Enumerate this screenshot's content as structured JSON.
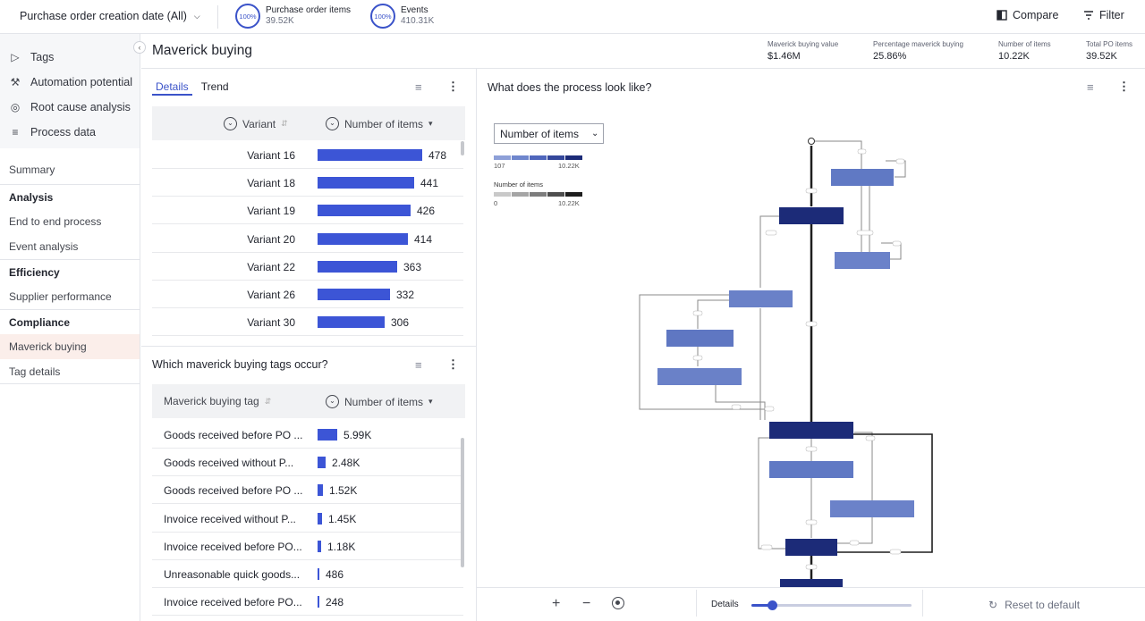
{
  "topbar": {
    "date_filter": "Purchase order creation date (All)",
    "gauges": [
      {
        "pct": "100%",
        "label": "Purchase order items",
        "value": "39.52K"
      },
      {
        "pct": "100%",
        "label": "Events",
        "value": "410.31K"
      }
    ],
    "compare": "Compare",
    "filter": "Filter"
  },
  "sidebar": {
    "top_items": [
      {
        "icon": "tag-icon",
        "label": "Tags"
      },
      {
        "icon": "robot-arm-icon",
        "label": "Automation potential"
      },
      {
        "icon": "target-icon",
        "label": "Root cause analysis"
      },
      {
        "icon": "list-icon",
        "label": "Process data"
      }
    ],
    "summary": "Summary",
    "sections": [
      {
        "head": "Analysis",
        "links": [
          "End to end process",
          "Event analysis"
        ]
      },
      {
        "head": "Efficiency",
        "links": [
          "Supplier performance"
        ]
      },
      {
        "head": "Compliance",
        "links": [
          "Maverick buying",
          "Tag details"
        ]
      }
    ]
  },
  "page": {
    "title": "Maverick buying",
    "kpis": [
      {
        "label": "Maverick buying value",
        "value": "$1.46M"
      },
      {
        "label": "Percentage maverick buying",
        "value": "25.86%"
      },
      {
        "label": "Number of items",
        "value": "10.22K"
      },
      {
        "label": "Total PO items",
        "value": "39.52K"
      }
    ]
  },
  "variants": {
    "tabs": [
      "Details",
      "Trend"
    ],
    "col1": "Variant",
    "col2": "Number of items",
    "max": 478,
    "rows": [
      {
        "label": "Variant 16",
        "value": 478
      },
      {
        "label": "Variant 18",
        "value": 441
      },
      {
        "label": "Variant 19",
        "value": 426
      },
      {
        "label": "Variant 20",
        "value": 414
      },
      {
        "label": "Variant 22",
        "value": 363
      },
      {
        "label": "Variant 26",
        "value": 332
      },
      {
        "label": "Variant 30",
        "value": 306
      }
    ]
  },
  "tags": {
    "title": "Which maverick buying tags occur?",
    "col1": "Maverick buying tag",
    "col2": "Number of items",
    "max": 5990,
    "rows": [
      {
        "label": "Goods received before PO ...",
        "value": 5990,
        "display": "5.99K"
      },
      {
        "label": "Goods received without P...",
        "value": 2480,
        "display": "2.48K"
      },
      {
        "label": "Goods received before PO ...",
        "value": 1520,
        "display": "1.52K"
      },
      {
        "label": "Invoice received without P...",
        "value": 1450,
        "display": "1.45K"
      },
      {
        "label": "Invoice received before PO...",
        "value": 1180,
        "display": "1.18K"
      },
      {
        "label": "Unreasonable quick goods...",
        "value": 486,
        "display": "486"
      },
      {
        "label": "Invoice received before PO...",
        "value": 248,
        "display": "248"
      }
    ]
  },
  "process": {
    "title": "What does the process look like?",
    "metric": "Number of items",
    "legend1": {
      "min": "107",
      "max": "10.22K"
    },
    "legend2": {
      "label": "Number of items",
      "min": "0",
      "max": "10.22K"
    },
    "colors": {
      "dark": "#1c2b78",
      "light": "#6079c4",
      "mid": "#3e52a8"
    }
  },
  "bottombar": {
    "details": "Details",
    "reset": "Reset to default",
    "detail_level": 0.13
  }
}
